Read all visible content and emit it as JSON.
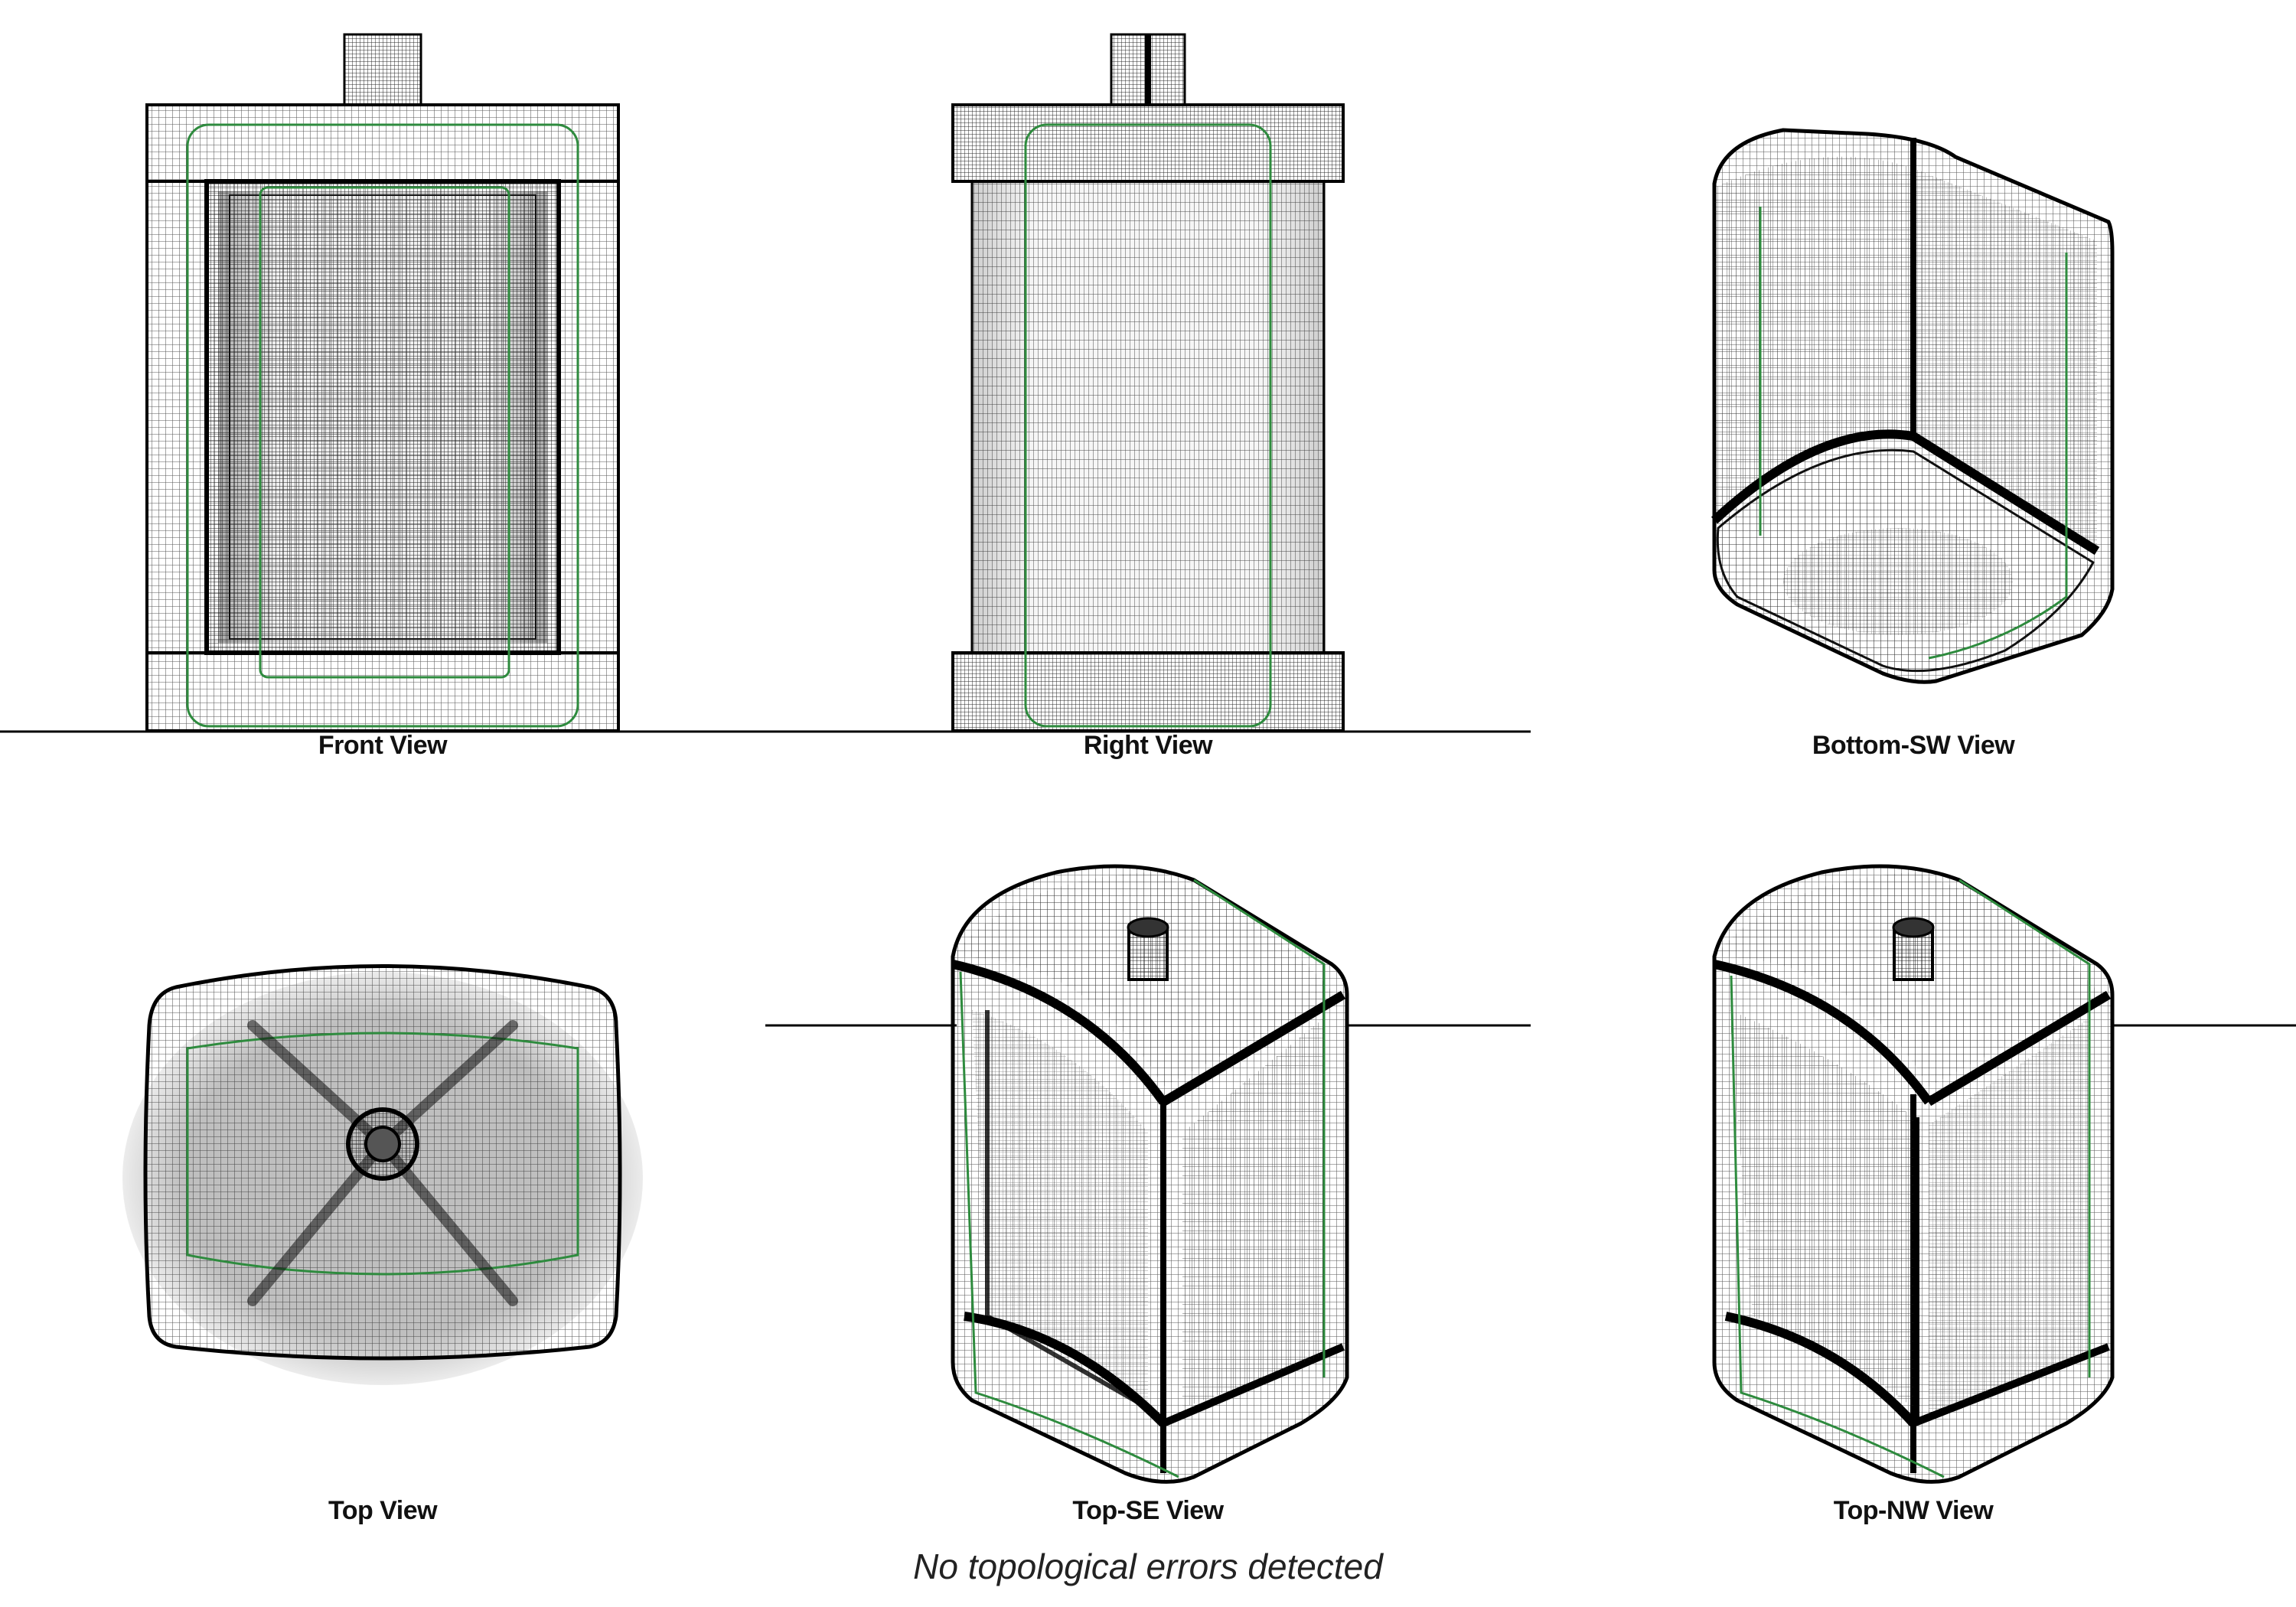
{
  "views": {
    "front": "Front View",
    "right": "Right View",
    "bottom_sw": "Bottom-SW View",
    "top": "Top View",
    "top_se": "Top-SE View",
    "top_nw": "Top-NW View"
  },
  "status_message": "No topological errors detected",
  "colors": {
    "mesh": "#1a1a1a",
    "edge": "#111111",
    "seam": "#2e8b3e",
    "background": "#ffffff"
  }
}
